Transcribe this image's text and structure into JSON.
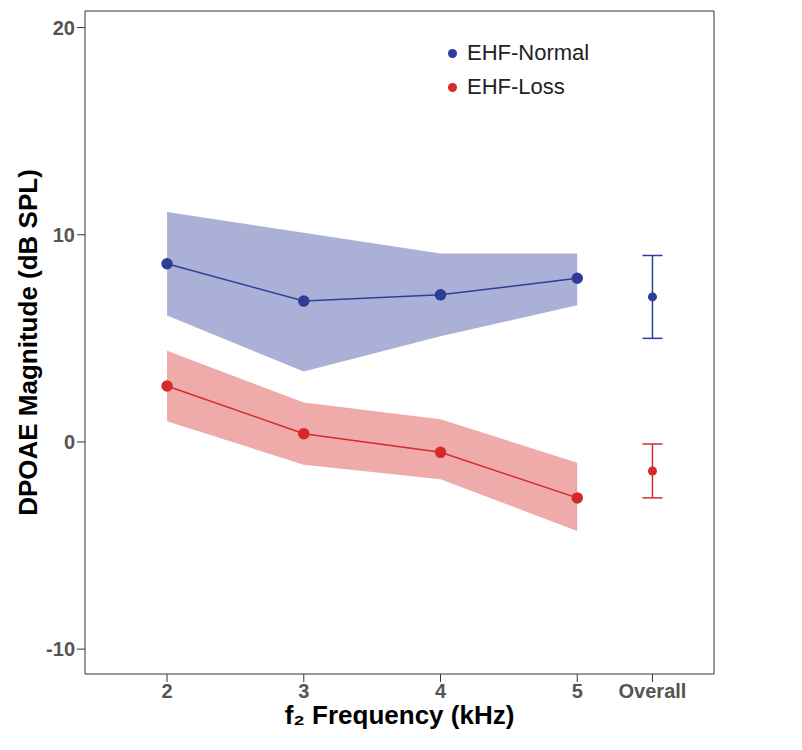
{
  "chart_data": {
    "type": "line",
    "x_label": "f₂ Frequency (kHz)",
    "y_label": "DPOAE Magnitude (dB SPL)",
    "xlim": [
      1.4,
      6.0
    ],
    "xticks": [
      2,
      3,
      4,
      5,
      {
        "value": 5.55,
        "label": "Overall"
      }
    ],
    "ylim": [
      -11.2,
      20.8
    ],
    "yticks": [
      -10,
      0,
      10,
      20
    ],
    "grid": false,
    "legend": "upper right",
    "series": [
      {
        "name": "EHF-Normal",
        "color": "#2e3d98",
        "marker": "circle",
        "x": [
          2,
          3,
          4,
          5
        ],
        "values": [
          8.6,
          6.8,
          7.1,
          7.9
        ],
        "lower": [
          6.1,
          3.4,
          5.1,
          6.6
        ],
        "upper": [
          11.1,
          10.1,
          9.1,
          9.1
        ],
        "overall": 7.0,
        "overall_error": [
          2.0,
          2.0
        ]
      },
      {
        "name": "EHF-Loss",
        "color": "#d62a2a",
        "marker": "circle",
        "x": [
          2,
          3,
          4,
          5
        ],
        "values": [
          2.7,
          0.4,
          -0.5,
          -2.7
        ],
        "lower": [
          1.0,
          -1.1,
          -1.8,
          -4.3
        ],
        "upper": [
          4.4,
          1.9,
          1.1,
          -1.0
        ],
        "overall": -1.4,
        "overall_error": [
          1.3,
          1.3
        ]
      }
    ]
  }
}
